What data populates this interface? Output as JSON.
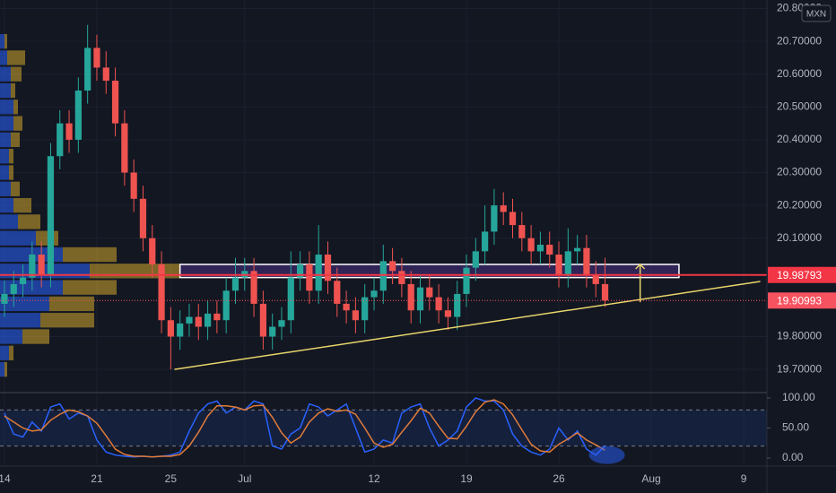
{
  "chart_data": [
    {
      "type": "candlestick",
      "currency": "MXN",
      "x": [
        0,
        0.5,
        1,
        1.5,
        2,
        2.5,
        3,
        3.5,
        4,
        4.5,
        5,
        5.5,
        6,
        6.5,
        7,
        7.5,
        8,
        8.5,
        9,
        9.5,
        10,
        10.5,
        11,
        11.5,
        12,
        12.5,
        13,
        13.5,
        14,
        14.5,
        15,
        15.5,
        16,
        16.5,
        17,
        17.5,
        18,
        18.5,
        19,
        19.5,
        20,
        20.5,
        21,
        21.5,
        22,
        22.5,
        23,
        23.5,
        24,
        24.5,
        25,
        25.5,
        26,
        26.5,
        27,
        27.5,
        28,
        28.5,
        29,
        29.5,
        30,
        30.5,
        31,
        31.5,
        32,
        32.5
      ],
      "open": [
        19.9,
        19.93,
        19.96,
        19.98,
        20.05,
        19.99,
        20.35,
        20.45,
        20.4,
        20.55,
        20.68,
        20.62,
        20.58,
        20.45,
        20.3,
        20.22,
        20.1,
        20.02,
        19.85,
        19.8,
        19.84,
        19.86,
        19.83,
        19.87,
        19.85,
        19.94,
        19.98,
        20.0,
        19.9,
        19.8,
        19.83,
        19.85,
        19.98,
        20.02,
        19.94,
        20.05,
        19.97,
        19.9,
        19.88,
        19.85,
        19.92,
        19.94,
        20.03,
        20.0,
        19.96,
        19.88,
        19.95,
        19.92,
        19.88,
        19.86,
        19.93,
        20.01,
        20.06,
        20.12,
        20.2,
        20.18,
        20.14,
        20.1,
        20.06,
        20.08,
        20.05,
        19.99,
        20.06,
        20.07,
        19.99,
        19.96
      ],
      "high": [
        19.97,
        20.0,
        20.02,
        20.09,
        20.09,
        20.39,
        20.49,
        20.49,
        20.59,
        20.75,
        20.72,
        20.67,
        20.62,
        20.49,
        20.34,
        20.26,
        20.14,
        20.06,
        19.89,
        19.88,
        19.9,
        19.9,
        19.91,
        19.91,
        19.98,
        20.04,
        20.04,
        20.04,
        19.94,
        19.87,
        19.89,
        20.06,
        20.06,
        20.06,
        20.14,
        20.09,
        20.01,
        19.94,
        19.92,
        19.96,
        19.98,
        20.08,
        20.07,
        20.04,
        20.0,
        19.99,
        19.99,
        19.96,
        19.92,
        19.97,
        20.05,
        20.1,
        20.2,
        20.25,
        20.24,
        20.22,
        20.18,
        20.14,
        20.12,
        20.12,
        20.09,
        20.13,
        20.11,
        20.11,
        20.03,
        20.04
      ],
      "low": [
        19.86,
        19.89,
        19.92,
        19.94,
        19.95,
        19.95,
        20.31,
        20.36,
        20.36,
        20.51,
        20.58,
        20.54,
        20.41,
        20.26,
        20.18,
        20.06,
        19.98,
        19.81,
        19.7,
        19.76,
        19.8,
        19.79,
        19.79,
        19.81,
        19.81,
        19.9,
        19.94,
        19.86,
        19.76,
        19.76,
        19.79,
        19.81,
        19.94,
        19.9,
        19.9,
        19.93,
        19.86,
        19.84,
        19.81,
        19.81,
        19.88,
        19.9,
        19.96,
        19.92,
        19.84,
        19.84,
        19.88,
        19.84,
        19.82,
        19.82,
        19.89,
        19.97,
        20.02,
        20.08,
        20.14,
        20.1,
        20.06,
        20.02,
        20.02,
        20.01,
        19.95,
        19.95,
        20.02,
        19.95,
        19.92,
        19.89
      ],
      "close": [
        19.93,
        19.96,
        19.98,
        20.05,
        19.99,
        20.35,
        20.45,
        20.4,
        20.55,
        20.68,
        20.62,
        20.58,
        20.45,
        20.3,
        20.22,
        20.1,
        20.02,
        19.85,
        19.8,
        19.84,
        19.86,
        19.83,
        19.87,
        19.85,
        19.94,
        19.98,
        20.0,
        19.9,
        19.8,
        19.83,
        19.85,
        19.98,
        20.02,
        19.94,
        20.05,
        19.97,
        19.9,
        19.88,
        19.85,
        19.92,
        19.94,
        20.03,
        20.0,
        19.96,
        19.88,
        19.95,
        19.92,
        19.88,
        19.86,
        19.93,
        20.01,
        20.06,
        20.12,
        20.2,
        20.18,
        20.14,
        20.1,
        20.06,
        20.08,
        20.05,
        19.99,
        20.06,
        20.07,
        19.99,
        19.96,
        19.91
      ],
      "up_color": "#26a69a",
      "down_color": "#ef5350",
      "xlim": [
        -0.24,
        41.26
      ],
      "xticks": [
        {
          "value": 0,
          "label": "14"
        },
        {
          "value": 5,
          "label": "21"
        },
        {
          "value": 9,
          "label": "25"
        },
        {
          "value": 13,
          "label": "Jul"
        },
        {
          "value": 20,
          "label": "12"
        },
        {
          "value": 25,
          "label": "19"
        },
        {
          "value": 30,
          "label": "26"
        },
        {
          "value": 35,
          "label": "Aug"
        },
        {
          "value": 40,
          "label": "9"
        }
      ],
      "ylim": [
        19.632,
        20.826
      ],
      "yticks": [
        {
          "value": 19.7,
          "label": "19.70000"
        },
        {
          "value": 19.8,
          "label": "19.80000"
        },
        {
          "value": 20.1,
          "label": "20.10000"
        },
        {
          "value": 20.2,
          "label": "20.20000"
        },
        {
          "value": 20.3,
          "label": "20.30000"
        },
        {
          "value": 20.4,
          "label": "20.40000"
        },
        {
          "value": 20.5,
          "label": "20.50000"
        },
        {
          "value": 20.6,
          "label": "20.60000"
        },
        {
          "value": 20.7,
          "label": "20.70000"
        },
        {
          "value": 20.8,
          "label": "20.80000"
        }
      ],
      "grid": true,
      "levels": [
        {
          "value": 19.98793,
          "label": "19.98793",
          "color": "#f23645",
          "style": "solid"
        },
        {
          "value": 19.90993,
          "label": "19.90993",
          "color": "#f7525f",
          "style": "dotted"
        }
      ],
      "volume_profile": {
        "levels": [
          19.7,
          19.75,
          19.8,
          19.85,
          19.9,
          19.95,
          20.0,
          20.05,
          20.1,
          20.15,
          20.2,
          20.25,
          20.3,
          20.35,
          20.4,
          20.45,
          20.5,
          20.55,
          20.6,
          20.65,
          20.7
        ],
        "up": [
          5,
          10,
          25,
          45,
          55,
          70,
          100,
          70,
          40,
          20,
          15,
          12,
          10,
          10,
          12,
          15,
          15,
          12,
          12,
          8,
          5
        ],
        "down": [
          3,
          5,
          30,
          60,
          50,
          60,
          100,
          60,
          25,
          25,
          20,
          10,
          5,
          5,
          10,
          10,
          5,
          5,
          12,
          20,
          3
        ],
        "up_color": "#2962ff",
        "down_color": "#d4a72c"
      },
      "drawings": {
        "zone": {
          "x": [
            9.5,
            36.5
          ],
          "y": [
            19.98,
            20.02
          ]
        },
        "trendline": {
          "x": [
            9.2,
            40.9
          ],
          "y": [
            19.7,
            19.968
          ]
        },
        "arrow": {
          "x": 34.4,
          "y": [
            19.905,
            20.02
          ]
        }
      }
    },
    {
      "type": "line",
      "series": [
        {
          "color": "#2962ff",
          "values": [
            75,
            40,
            35,
            60,
            45,
            85,
            90,
            65,
            75,
            70,
            30,
            10,
            5,
            3,
            2,
            3,
            2,
            3,
            5,
            10,
            45,
            75,
            90,
            95,
            75,
            85,
            80,
            95,
            90,
            20,
            15,
            40,
            50,
            90,
            85,
            70,
            80,
            90,
            50,
            10,
            15,
            30,
            25,
            75,
            85,
            90,
            50,
            20,
            30,
            45,
            85,
            100,
            95,
            95,
            80,
            40,
            20,
            10,
            5,
            15,
            50,
            30,
            45,
            15,
            5,
            20
          ]
        },
        {
          "color": "#e07b39",
          "values": [
            70,
            60,
            50,
            45,
            47,
            63,
            73,
            80,
            77,
            70,
            58,
            37,
            15,
            6,
            3,
            3,
            2,
            3,
            3,
            6,
            20,
            43,
            70,
            87,
            87,
            85,
            80,
            87,
            88,
            68,
            42,
            25,
            35,
            60,
            75,
            82,
            78,
            80,
            73,
            50,
            25,
            18,
            23,
            43,
            62,
            83,
            75,
            53,
            33,
            32,
            53,
            77,
            93,
            97,
            90,
            72,
            47,
            23,
            12,
            10,
            23,
            32,
            42,
            30,
            22,
            13
          ]
        }
      ],
      "ylim": [
        -13.4,
        106
      ],
      "yticks": [
        {
          "value": 0,
          "label": "0.00"
        },
        {
          "value": 50,
          "label": "50.00"
        },
        {
          "value": 100,
          "label": "100.00"
        }
      ],
      "bands": [
        20,
        80
      ],
      "highlight": {
        "x": 32.6,
        "y": 5
      }
    }
  ]
}
